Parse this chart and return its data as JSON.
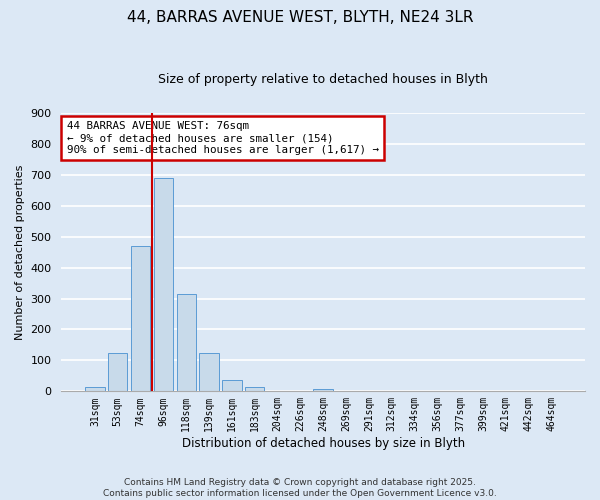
{
  "title_line1": "44, BARRAS AVENUE WEST, BLYTH, NE24 3LR",
  "title_line2": "Size of property relative to detached houses in Blyth",
  "xlabel": "Distribution of detached houses by size in Blyth",
  "ylabel": "Number of detached properties",
  "bar_labels": [
    "31sqm",
    "53sqm",
    "74sqm",
    "96sqm",
    "118sqm",
    "139sqm",
    "161sqm",
    "183sqm",
    "204sqm",
    "226sqm",
    "248sqm",
    "269sqm",
    "291sqm",
    "312sqm",
    "334sqm",
    "356sqm",
    "377sqm",
    "399sqm",
    "421sqm",
    "442sqm",
    "464sqm"
  ],
  "bar_values": [
    15,
    125,
    470,
    690,
    315,
    125,
    37,
    15,
    0,
    0,
    8,
    0,
    0,
    0,
    0,
    0,
    0,
    0,
    0,
    0,
    0
  ],
  "bar_color": "#c8daea",
  "bar_edge_color": "#5b9bd5",
  "background_color": "#dce8f5",
  "plot_bg_color": "#dce8f5",
  "grid_color": "#ffffff",
  "vline_color": "#cc0000",
  "annotation_text": "44 BARRAS AVENUE WEST: 76sqm\n← 9% of detached houses are smaller (154)\n90% of semi-detached houses are larger (1,617) →",
  "annotation_box_color": "#ffffff",
  "annotation_box_edge": "#cc0000",
  "ylim": [
    0,
    900
  ],
  "yticks": [
    0,
    100,
    200,
    300,
    400,
    500,
    600,
    700,
    800,
    900
  ],
  "footnote_line1": "Contains HM Land Registry data © Crown copyright and database right 2025.",
  "footnote_line2": "Contains public sector information licensed under the Open Government Licence v3.0."
}
